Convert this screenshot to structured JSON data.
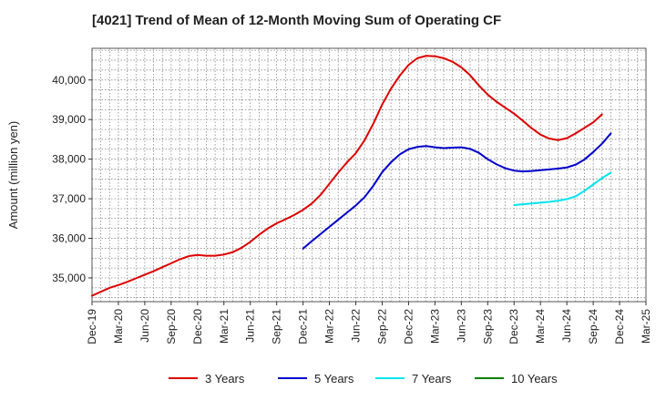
{
  "chart_data": {
    "type": "line",
    "title": "[4021]  Trend of Mean of 12-Month Moving Sum of Operating CF",
    "xlabel": "",
    "ylabel": "Amount (million yen)",
    "ylim": [
      34400,
      40800
    ],
    "yticks": [
      35000,
      36000,
      37000,
      38000,
      39000,
      40000
    ],
    "ytick_labels": [
      "35,000",
      "36,000",
      "37,000",
      "38,000",
      "39,000",
      "40,000"
    ],
    "xticks": [
      "Dec-19",
      "Mar-20",
      "Jun-20",
      "Sep-20",
      "Dec-20",
      "Mar-21",
      "Jun-21",
      "Sep-21",
      "Dec-21",
      "Mar-22",
      "Jun-22",
      "Sep-22",
      "Dec-22",
      "Mar-23",
      "Jun-23",
      "Sep-23",
      "Dec-23",
      "Mar-24",
      "Jun-24",
      "Sep-24",
      "Dec-24",
      "Mar-25"
    ],
    "grid": true,
    "legend_position": "bottom",
    "series": [
      {
        "name": "3 Years",
        "color": "#dd0000",
        "start_index": 0,
        "values": [
          34550,
          34650,
          34750,
          34820,
          34900,
          34990,
          35080,
          35170,
          35270,
          35370,
          35470,
          35550,
          35580,
          35560,
          35560,
          35590,
          35650,
          35760,
          35910,
          36090,
          36250,
          36380,
          36480,
          36590,
          36720,
          36880,
          37100,
          37380,
          37660,
          37920,
          38150,
          38480,
          38900,
          39380,
          39780,
          40110,
          40380,
          40550,
          40610,
          40600,
          40550,
          40460,
          40320,
          40120,
          39860,
          39630,
          39450,
          39300,
          39150,
          38970,
          38780,
          38620,
          38520,
          38480,
          38530,
          38650,
          38790,
          38930,
          39130
        ]
      },
      {
        "name": "5 Years",
        "color": "#0000cc",
        "start_index": 24,
        "values": [
          35740,
          35930,
          36110,
          36290,
          36470,
          36650,
          36830,
          37040,
          37330,
          37670,
          37920,
          38120,
          38250,
          38310,
          38330,
          38300,
          38280,
          38290,
          38300,
          38260,
          38160,
          38000,
          37870,
          37770,
          37710,
          37690,
          37700,
          37720,
          37740,
          37760,
          37790,
          37860,
          37990,
          38180,
          38390,
          38650
        ]
      },
      {
        "name": "7 Years",
        "color": "#00e5ee",
        "start_index": 48,
        "values": [
          36840,
          36860,
          36880,
          36900,
          36920,
          36950,
          36990,
          37060,
          37200,
          37360,
          37520,
          37660
        ]
      },
      {
        "name": "10 Years",
        "color": "#008000",
        "start_index": 0,
        "values": []
      }
    ]
  }
}
